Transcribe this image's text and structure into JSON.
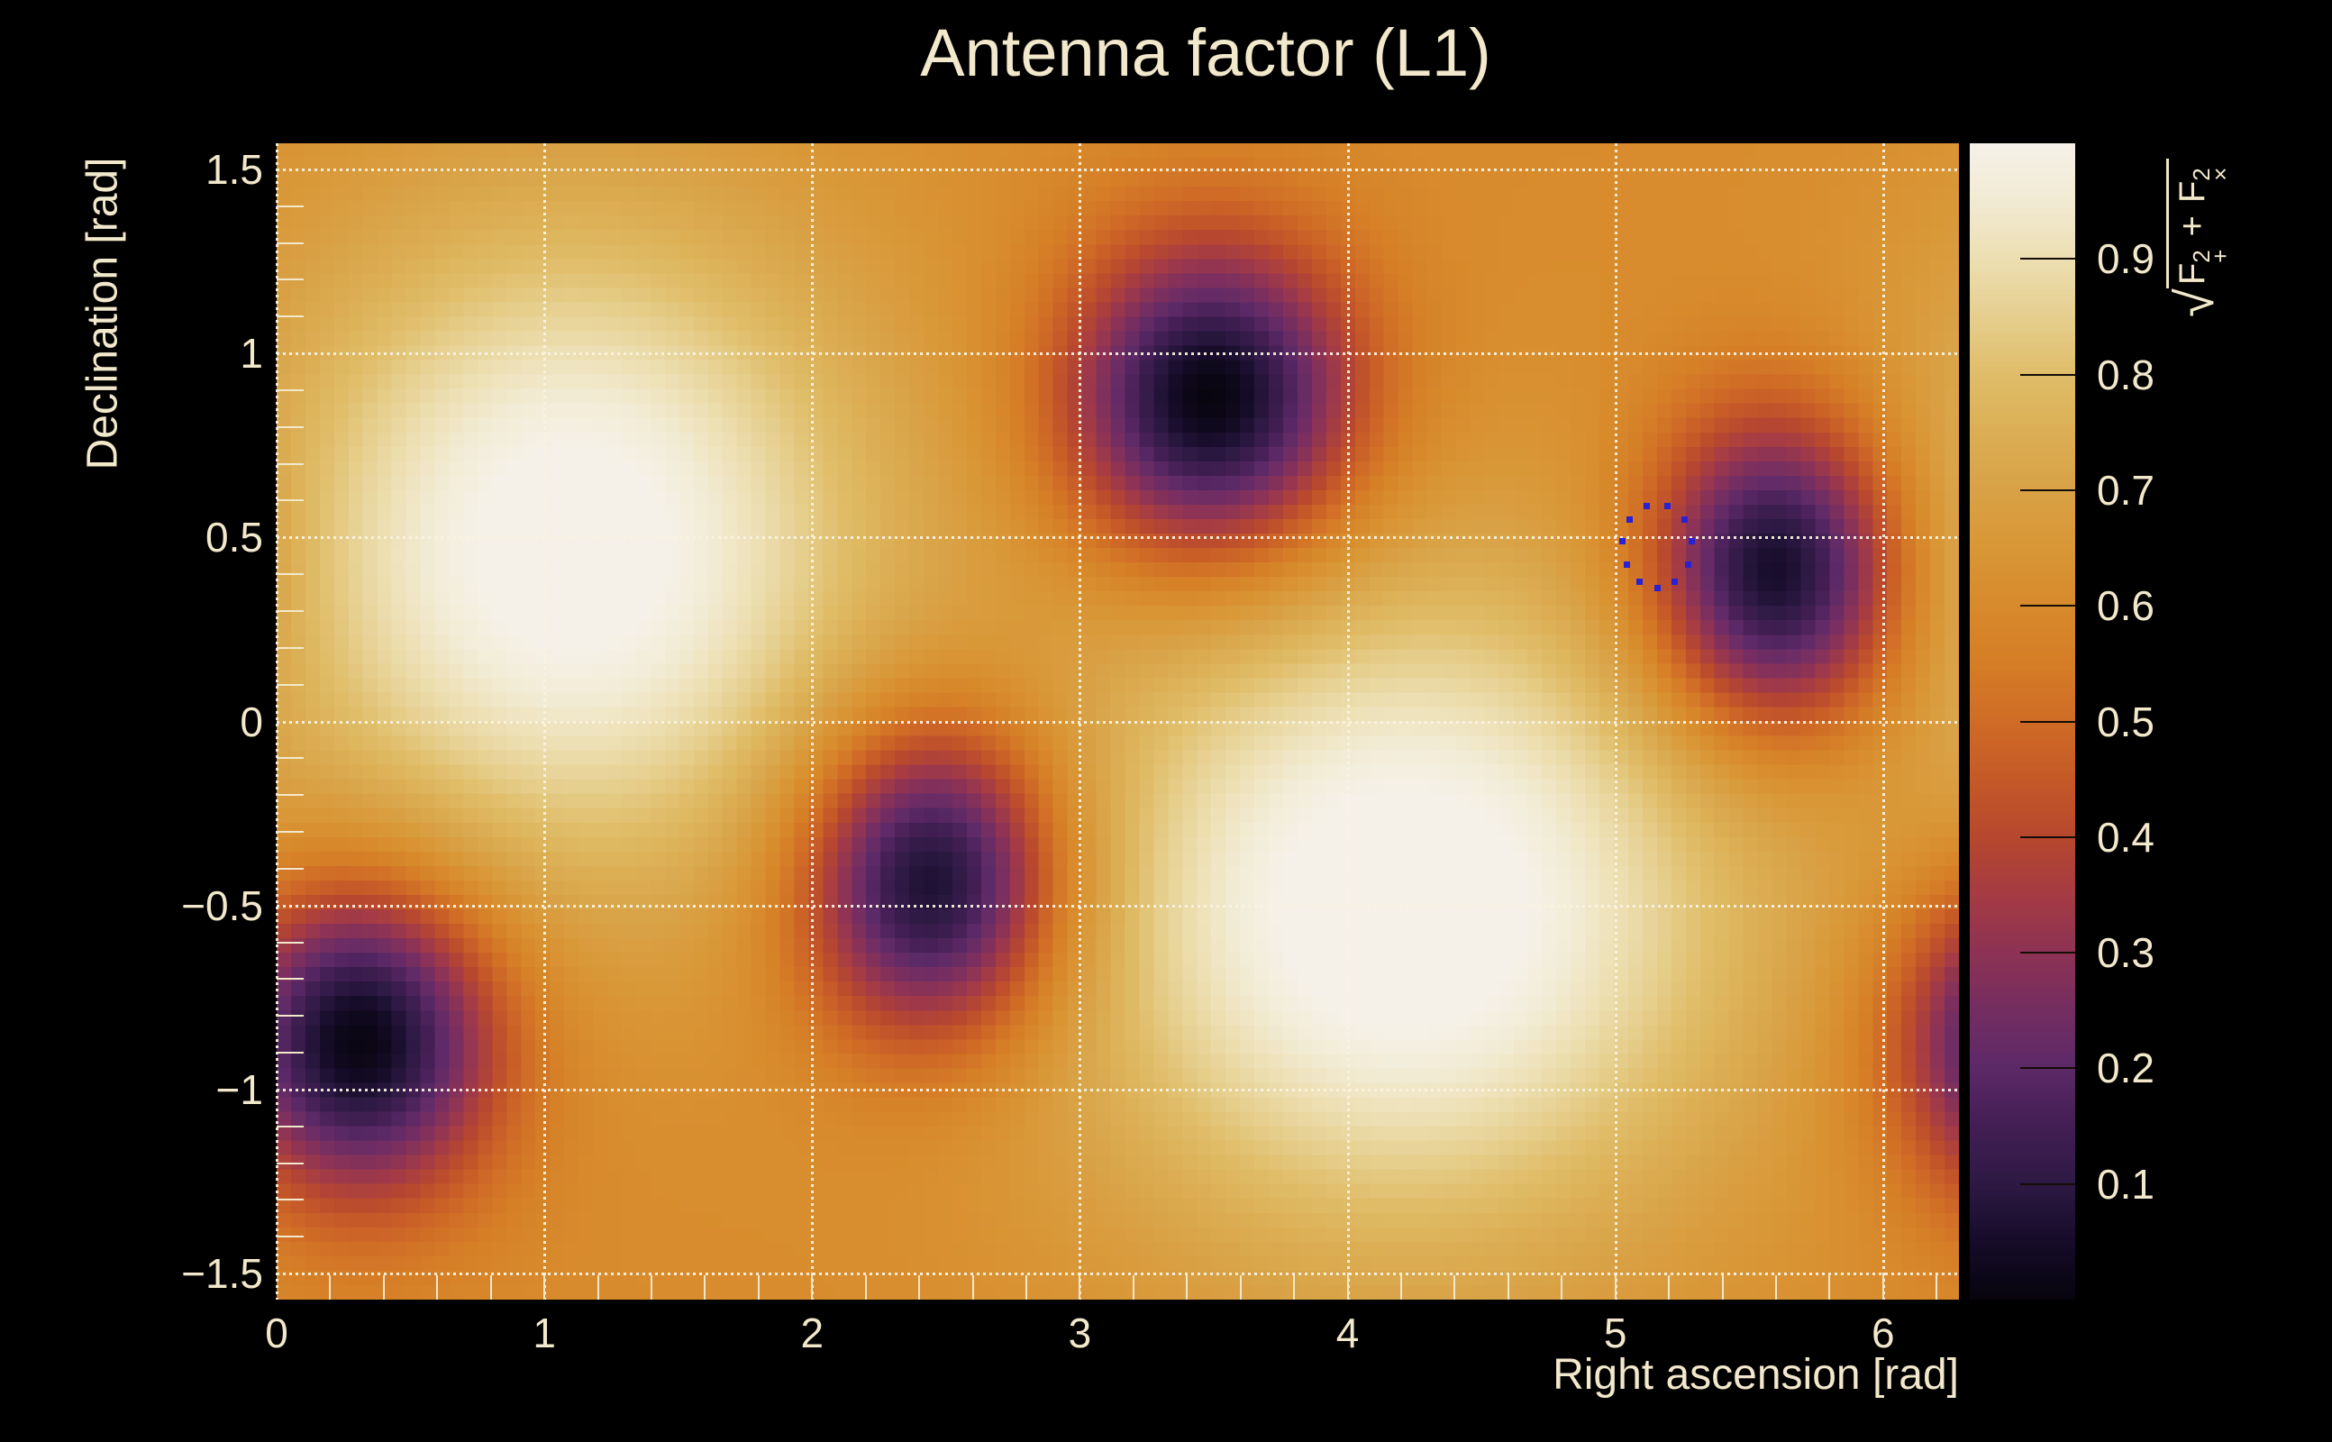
{
  "title": "Antenna factor (L1)",
  "axes": {
    "x_title": "Right ascension [rad]",
    "y_title": "Declination [rad]"
  },
  "colorbar": {
    "tick_labels": [
      "0.9",
      "0.8",
      "0.7",
      "0.6",
      "0.5",
      "0.4",
      "0.3",
      "0.2",
      "0.1"
    ],
    "tick_values": [
      0.9,
      0.8,
      0.7,
      0.6,
      0.5,
      0.4,
      0.3,
      0.2,
      0.1
    ],
    "formula": {
      "text": "√(F₊² + Fₓ²)",
      "radical": "√",
      "f": "F",
      "sup": "2",
      "sub_plus": "+",
      "op": "+",
      "f2": "F",
      "sup2": "2",
      "sub_cross": "×"
    }
  },
  "colors": {
    "background": "#000000",
    "text": "#f2e8cb",
    "grid": "#f9f2e0",
    "marker_blue": "#2822d2",
    "colorbar_tickline": "#140d06"
  },
  "chart_data": {
    "type": "heatmap",
    "title": "Antenna factor (L1)",
    "xlabel": "Right ascension [rad]",
    "ylabel": "Declination [rad]",
    "zlabel": "sqrt(F_plus^2 + F_cross^2)",
    "x_range": [
      0,
      6.2832
    ],
    "y_range": [
      -1.5708,
      1.5708
    ],
    "z_range": [
      0,
      1
    ],
    "x_ticks": [
      0,
      1,
      2,
      3,
      4,
      5,
      6
    ],
    "x_tick_labels": [
      "0",
      "1",
      "2",
      "3",
      "4",
      "5",
      "6"
    ],
    "y_ticks": [
      1.5,
      1,
      0.5,
      0,
      -0.5,
      -1,
      -1.5
    ],
    "y_tick_labels": [
      "1.5",
      "1",
      "0.5",
      "0",
      "−0.5",
      "−1",
      "−1.5"
    ],
    "x_minor_step": 0.2,
    "y_minor_step": 0.1,
    "grid": true,
    "bins": {
      "x": 117,
      "y": 80
    },
    "model": {
      "base": 0.6,
      "maxima": [
        {
          "ra": 1.1,
          "dec": 0.47,
          "value": 1.0,
          "amp": 0.44,
          "sigma_ra": 0.8,
          "sigma_dec": 0.62
        },
        {
          "ra": 4.21,
          "dec": -0.51,
          "value": 1.0,
          "amp": 0.46,
          "sigma_ra": 0.88,
          "sigma_dec": 0.62
        }
      ],
      "minima": [
        {
          "ra": 3.49,
          "dec": 0.87,
          "value": 0.0,
          "amp": 0.63,
          "sigma_ra": 0.38,
          "sigma_dec": 0.3
        },
        {
          "ra": 5.6,
          "dec": 0.4,
          "value": 0.0,
          "amp": 0.63,
          "sigma_ra": 0.33,
          "sigma_dec": 0.3
        },
        {
          "ra": 2.45,
          "dec": -0.43,
          "value": 0.0,
          "amp": 0.63,
          "sigma_ra": 0.34,
          "sigma_dec": 0.3
        },
        {
          "ra": 0.31,
          "dec": -0.86,
          "value": 0.0,
          "amp": 0.63,
          "sigma_ra": 0.36,
          "sigma_dec": 0.3
        }
      ]
    },
    "colormap_stops": [
      [
        0.0,
        "#08050f"
      ],
      [
        0.05,
        "#170d2b"
      ],
      [
        0.1,
        "#2f1a45"
      ],
      [
        0.15,
        "#441f55"
      ],
      [
        0.2,
        "#5d2a68"
      ],
      [
        0.25,
        "#752e62"
      ],
      [
        0.3,
        "#8e3355"
      ],
      [
        0.35,
        "#a63c44"
      ],
      [
        0.4,
        "#b8482e"
      ],
      [
        0.45,
        "#c65a28"
      ],
      [
        0.5,
        "#d06c26"
      ],
      [
        0.55,
        "#d57e27"
      ],
      [
        0.6,
        "#d88b2c"
      ],
      [
        0.65,
        "#d99737"
      ],
      [
        0.7,
        "#d9a246"
      ],
      [
        0.75,
        "#dcaf55"
      ],
      [
        0.8,
        "#e0bd69"
      ],
      [
        0.85,
        "#e6cf8e"
      ],
      [
        0.9,
        "#eddfb2"
      ],
      [
        0.95,
        "#f2ebd3"
      ],
      [
        1.0,
        "#f5f1e8"
      ]
    ],
    "localization_markers": {
      "shape": "square",
      "color": "#2822d2",
      "points": [
        {
          "ra": 5.115,
          "dec": 0.586
        },
        {
          "ra": 5.193,
          "dec": 0.586
        },
        {
          "ra": 5.051,
          "dec": 0.55
        },
        {
          "ra": 5.257,
          "dec": 0.55
        },
        {
          "ra": 5.025,
          "dec": 0.491
        },
        {
          "ra": 5.284,
          "dec": 0.491
        },
        {
          "ra": 5.041,
          "dec": 0.427
        },
        {
          "ra": 5.27,
          "dec": 0.427
        },
        {
          "ra": 5.089,
          "dec": 0.381
        },
        {
          "ra": 5.22,
          "dec": 0.381
        },
        {
          "ra": 5.156,
          "dec": 0.364
        }
      ]
    },
    "colorbar_ticks": [
      0.1,
      0.2,
      0.3,
      0.4,
      0.5,
      0.6,
      0.7,
      0.8,
      0.9
    ],
    "legend_position": "right-colorbar"
  }
}
